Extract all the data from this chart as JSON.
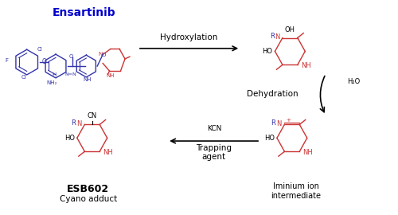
{
  "title": "Ensartinib",
  "title_color": "#0000CC",
  "title_bold": true,
  "background_color": "#FFFFFF",
  "arrow_color": "#000000",
  "blue_color": "#3333AA",
  "red_color": "#CC3333",
  "labels": {
    "hydroxylation": "Hydroxylation",
    "dehydration": "Dehydration",
    "h2o": "H₂O",
    "trapping": "Trapping\nagent",
    "kcn": "KCN",
    "iminium": "Iminium ion\nintermediate",
    "esb602": "ESB602",
    "cyano": "Cyano adduct"
  },
  "figsize": [
    5.0,
    2.7
  ],
  "dpi": 100
}
